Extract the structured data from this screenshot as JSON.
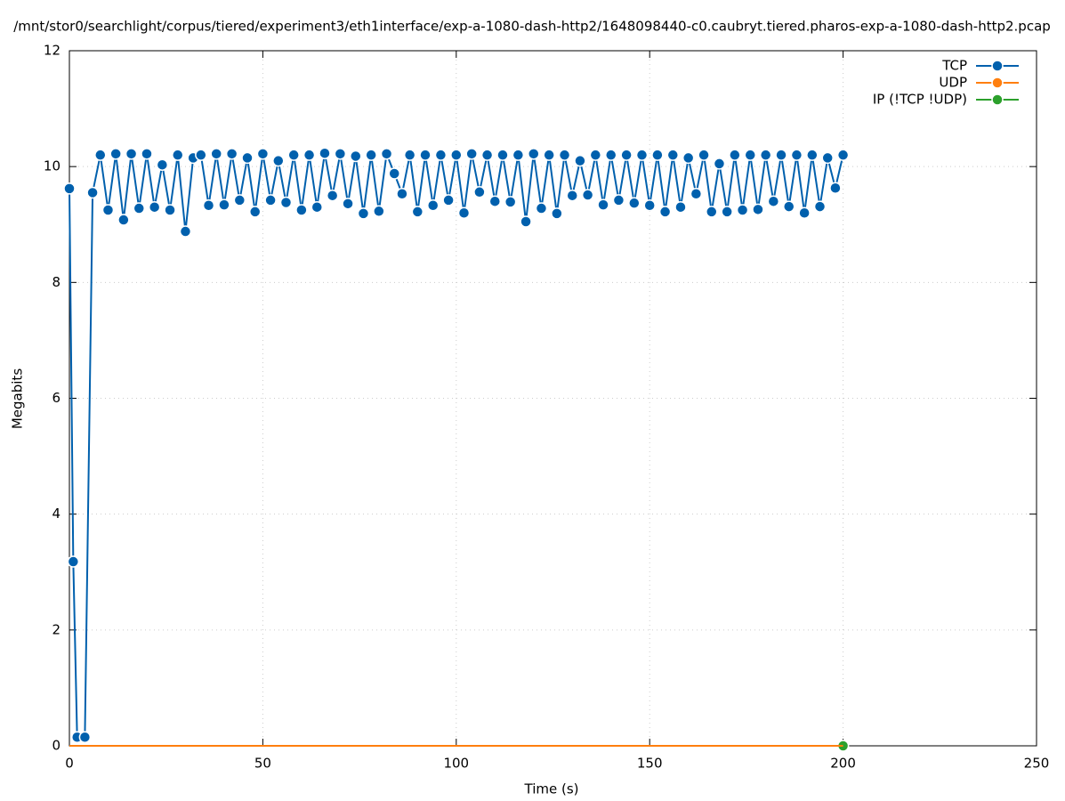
{
  "chart_data": {
    "type": "line",
    "title": "/mnt/stor0/searchlight/corpus/tiered/experiment3/eth1interface/exp-a-1080-dash-http2/1648098440-c0.caubryt.tiered.pharos-exp-a-1080-dash-http2.pcap",
    "xlabel": "Time (s)",
    "ylabel": "Megabits",
    "x": [
      0,
      1,
      2,
      4,
      6,
      8,
      10,
      12,
      14,
      16,
      18,
      20,
      22,
      24,
      26,
      28,
      30,
      32,
      34,
      36,
      38,
      40,
      42,
      44,
      46,
      48,
      50,
      52,
      54,
      56,
      58,
      60,
      62,
      64,
      66,
      68,
      70,
      72,
      74,
      76,
      78,
      80,
      82,
      84,
      86,
      88,
      90,
      92,
      94,
      96,
      98,
      100,
      102,
      104,
      106,
      108,
      110,
      112,
      114,
      116,
      118,
      120,
      122,
      124,
      126,
      128,
      130,
      132,
      134,
      136,
      138,
      140,
      142,
      144,
      146,
      148,
      150,
      152,
      154,
      156,
      158,
      160,
      162,
      164,
      166,
      168,
      170,
      172,
      174,
      176,
      178,
      180,
      182,
      184,
      186,
      188,
      190,
      192,
      194,
      196,
      198,
      200
    ],
    "series": [
      {
        "name": "TCP",
        "color": "#0060ad",
        "values": [
          9.62,
          3.18,
          0.15,
          0.15,
          9.55,
          10.2,
          9.25,
          10.22,
          9.08,
          10.22,
          9.28,
          10.22,
          9.3,
          10.03,
          9.25,
          10.2,
          8.88,
          10.15,
          10.2,
          9.33,
          10.22,
          9.34,
          10.22,
          9.42,
          10.15,
          9.22,
          10.22,
          9.42,
          10.1,
          9.38,
          10.2,
          9.25,
          10.2,
          9.3,
          10.23,
          9.5,
          10.22,
          9.36,
          10.18,
          9.19,
          10.2,
          9.23,
          10.22,
          9.88,
          9.53,
          10.2,
          9.22,
          10.2,
          9.33,
          10.2,
          9.42,
          10.2,
          9.2,
          10.22,
          9.56,
          10.2,
          9.4,
          10.2,
          9.39,
          10.2,
          9.05,
          10.22,
          9.28,
          10.2,
          9.19,
          10.2,
          9.5,
          10.1,
          9.51,
          10.2,
          9.34,
          10.2,
          9.42,
          10.2,
          9.37,
          10.2,
          9.33,
          10.2,
          9.22,
          10.2,
          9.3,
          10.15,
          9.53,
          10.2,
          9.22,
          10.05,
          9.22,
          10.2,
          9.25,
          10.2,
          9.26,
          10.2,
          9.4,
          10.2,
          9.31,
          10.2,
          9.2,
          10.2,
          9.31,
          10.15,
          9.63,
          10.2
        ]
      },
      {
        "name": "UDP",
        "color": "#ff7f0e",
        "values": [
          0,
          0,
          0,
          0,
          0,
          0,
          0,
          0,
          0,
          0,
          0,
          0,
          0,
          0,
          0,
          0,
          0,
          0,
          0,
          0,
          0,
          0,
          0,
          0,
          0,
          0,
          0,
          0,
          0,
          0,
          0,
          0,
          0,
          0,
          0,
          0,
          0,
          0,
          0,
          0,
          0,
          0,
          0,
          0,
          0,
          0,
          0,
          0,
          0,
          0,
          0,
          0,
          0,
          0,
          0,
          0,
          0,
          0,
          0,
          0,
          0,
          0,
          0,
          0,
          0,
          0,
          0,
          0,
          0,
          0,
          0,
          0,
          0,
          0,
          0,
          0,
          0,
          0,
          0,
          0,
          0,
          0,
          0,
          0,
          0,
          0,
          0,
          0,
          0,
          0,
          0,
          0,
          0,
          0,
          0,
          0,
          0,
          0,
          0,
          0,
          0,
          0
        ]
      },
      {
        "name": "IP (!TCP  !UDP)",
        "color": "#2ca02c",
        "values": [
          0,
          0,
          0,
          0,
          0,
          0,
          0,
          0,
          0,
          0,
          0,
          0,
          0,
          0,
          0,
          0,
          0,
          0,
          0,
          0,
          0,
          0,
          0,
          0,
          0,
          0,
          0,
          0,
          0,
          0,
          0,
          0,
          0,
          0,
          0,
          0,
          0,
          0,
          0,
          0,
          0,
          0,
          0,
          0,
          0,
          0,
          0,
          0,
          0,
          0,
          0,
          0,
          0,
          0,
          0,
          0,
          0,
          0,
          0,
          0,
          0,
          0,
          0,
          0,
          0,
          0,
          0,
          0,
          0,
          0,
          0,
          0,
          0,
          0,
          0,
          0,
          0,
          0,
          0,
          0,
          0,
          0,
          0,
          0,
          0,
          0,
          0,
          0,
          0,
          0,
          0,
          0,
          0,
          0,
          0,
          0,
          0,
          0,
          0,
          0,
          0,
          0
        ]
      }
    ],
    "xlim": [
      0,
      250
    ],
    "xticks": [
      0,
      50,
      100,
      150,
      200,
      250
    ],
    "ylim": [
      0,
      12
    ],
    "yticks": [
      0,
      2,
      4,
      6,
      8,
      10,
      12
    ],
    "grid": true,
    "legend": "top-right"
  }
}
